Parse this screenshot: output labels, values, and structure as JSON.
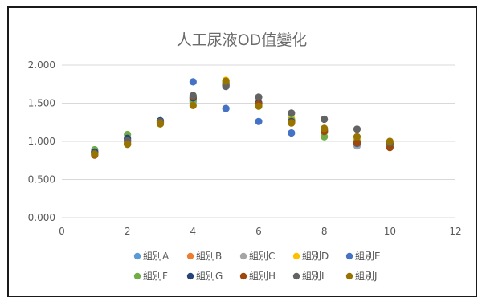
{
  "chart_data": {
    "type": "scatter",
    "title": "人工尿液OD值變化",
    "xlabel": "",
    "ylabel": "",
    "xlim": [
      0,
      12
    ],
    "ylim": [
      0,
      2.0
    ],
    "x_ticks": [
      "0",
      "2",
      "4",
      "6",
      "8",
      "10",
      "12"
    ],
    "y_ticks": [
      "0.000",
      "0.500",
      "1.000",
      "1.500",
      "2.000"
    ],
    "grid": "horizontal",
    "legend_position": "bottom",
    "series": [
      {
        "name": "組別A",
        "color": "#5b9bd5",
        "x": [
          1,
          2,
          3,
          4,
          5,
          6,
          7,
          8,
          9,
          10
        ],
        "y": [
          0.85,
          1.0,
          1.25,
          1.52,
          1.74,
          1.5,
          1.28,
          1.13,
          1.0,
          0.95
        ]
      },
      {
        "name": "組別B",
        "color": "#ed7d31",
        "x": [
          1,
          2,
          3,
          4,
          5,
          6,
          7,
          8,
          9,
          10
        ],
        "y": [
          0.84,
          0.99,
          1.25,
          1.56,
          1.76,
          1.49,
          1.27,
          1.14,
          0.99,
          0.94
        ]
      },
      {
        "name": "組別C",
        "color": "#a5a5a5",
        "x": [
          1,
          2,
          3,
          4,
          5,
          6,
          7,
          8,
          9,
          10
        ],
        "y": [
          0.86,
          1.01,
          1.24,
          1.53,
          1.78,
          1.51,
          1.29,
          1.12,
          0.94,
          0.92
        ]
      },
      {
        "name": "組別D",
        "color": "#ffc000",
        "x": [
          1,
          2,
          3,
          4,
          5,
          6,
          7,
          8,
          9,
          10
        ],
        "y": [
          0.85,
          0.98,
          1.26,
          1.55,
          1.8,
          1.48,
          1.3,
          1.15,
          1.02,
          0.96
        ]
      },
      {
        "name": "組別E",
        "color": "#4472c4",
        "x": [
          1,
          2,
          3,
          4,
          5,
          6,
          7,
          8,
          9,
          10
        ],
        "y": [
          0.87,
          1.02,
          1.27,
          1.78,
          1.43,
          1.26,
          1.11,
          1.14,
          0.97,
          0.93
        ]
      },
      {
        "name": "組別F",
        "color": "#70ad47",
        "x": [
          1,
          2,
          3,
          4,
          5,
          6,
          7,
          8,
          9,
          10
        ],
        "y": [
          0.89,
          1.09,
          1.25,
          1.54,
          1.77,
          1.47,
          1.28,
          1.06,
          1.0,
          0.95
        ]
      },
      {
        "name": "組別G",
        "color": "#264478",
        "x": [
          1,
          2,
          3,
          4,
          5,
          6,
          7,
          8,
          9,
          10
        ],
        "y": [
          0.86,
          1.04,
          1.27,
          1.57,
          1.73,
          1.5,
          1.26,
          1.16,
          0.98,
          0.97
        ]
      },
      {
        "name": "組別H",
        "color": "#9e480e",
        "x": [
          1,
          2,
          3,
          4,
          5,
          6,
          7,
          8,
          9,
          10
        ],
        "y": [
          0.82,
          0.97,
          1.23,
          1.59,
          1.75,
          1.49,
          1.25,
          1.13,
          0.98,
          0.92
        ]
      },
      {
        "name": "組別I",
        "color": "#636363",
        "x": [
          1,
          2,
          3,
          4,
          5,
          6,
          7,
          8,
          9,
          10
        ],
        "y": [
          0.84,
          1.01,
          1.26,
          1.6,
          1.72,
          1.58,
          1.37,
          1.29,
          1.16,
          0.98
        ]
      },
      {
        "name": "組別J",
        "color": "#997300",
        "x": [
          1,
          2,
          3,
          4,
          5,
          6,
          7,
          8,
          9,
          10
        ],
        "y": [
          0.83,
          0.96,
          1.23,
          1.47,
          1.79,
          1.46,
          1.24,
          1.17,
          1.06,
          1.0
        ]
      }
    ]
  }
}
